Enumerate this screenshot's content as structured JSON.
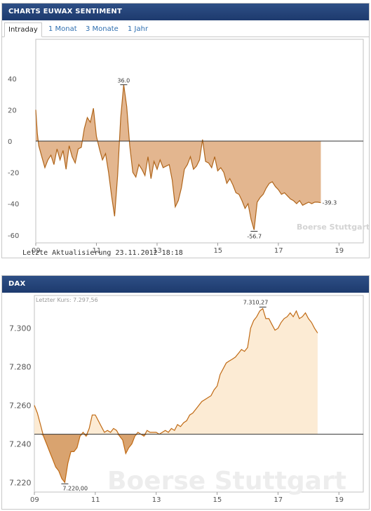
{
  "colors": {
    "header_bg": "#1f3d73",
    "sentiment_fill": "#e3b68f",
    "sentiment_line": "#b0651a",
    "dax_line": "#c06a14",
    "dax_fill_above": "#fcebd4",
    "dax_fill_below": "#d9a36f"
  },
  "sentiment": {
    "header": "CHARTS EUWAX SENTIMENT",
    "tabs": [
      "Intraday",
      "1 Monat",
      "3 Monate",
      "1 Jahr"
    ],
    "active_tab": "Intraday",
    "footer": "Letzte Aktualisierung 23.11.2012 18:18",
    "watermark": "Boerse Stuttgart"
  },
  "dax": {
    "header": "DAX",
    "last_price": "Letzter Kurs: 7.297,56",
    "watermark": "Boerse Stuttgart"
  },
  "chart_data": [
    {
      "type": "area",
      "title": "CHARTS EUWAX SENTIMENT",
      "xlim": [
        9,
        19.8
      ],
      "ylim": [
        -65,
        65
      ],
      "x_ticks": [
        "09",
        "11",
        "13",
        "15",
        "17",
        "19"
      ],
      "y_ticks": [
        "40",
        "20",
        "0",
        "-20",
        "-40",
        "-60"
      ],
      "baseline": 0,
      "annotations": {
        "max": "36.0",
        "min": "-56.7",
        "last": "-39.3"
      },
      "series": [
        {
          "x": [
            9.0,
            9.05,
            9.1,
            9.2,
            9.3,
            9.4,
            9.5,
            9.6,
            9.7,
            9.8,
            9.9,
            10.0,
            10.1,
            10.2,
            10.3,
            10.4,
            10.5,
            10.6,
            10.7,
            10.8,
            10.9,
            11.0,
            11.1,
            11.2,
            11.3,
            11.4,
            11.5,
            11.6,
            11.7,
            11.8,
            11.9,
            12.0,
            12.1,
            12.2,
            12.3,
            12.4,
            12.5,
            12.6,
            12.7,
            12.8,
            12.9,
            13.0,
            13.1,
            13.2,
            13.3,
            13.4,
            13.5,
            13.6,
            13.7,
            13.8,
            13.9,
            14.0,
            14.1,
            14.2,
            14.3,
            14.4,
            14.5,
            14.6,
            14.7,
            14.8,
            14.9,
            15.0,
            15.1,
            15.2,
            15.3,
            15.4,
            15.5,
            15.6,
            15.7,
            15.8,
            15.9,
            16.0,
            16.1,
            16.2,
            16.3,
            16.4,
            16.5,
            16.6,
            16.7,
            16.8,
            16.9,
            17.0,
            17.1,
            17.2,
            17.3,
            17.4,
            17.5,
            17.6,
            17.7,
            17.8,
            17.9,
            18.0,
            18.1,
            18.2,
            18.3,
            18.4
          ],
          "y": [
            20,
            5,
            -3,
            -10,
            -17,
            -12,
            -9,
            -15,
            -5,
            -12,
            -6,
            -18,
            -3,
            -10,
            -14,
            -5,
            -4,
            8,
            15,
            12,
            21,
            3,
            -5,
            -12,
            -8,
            -20,
            -35,
            -48,
            -22,
            15,
            36,
            22,
            -3,
            -20,
            -23,
            -15,
            -18,
            -22,
            -10,
            -24,
            -13,
            -18,
            -12,
            -17,
            -16,
            -15,
            -25,
            -42,
            -38,
            -30,
            -18,
            -15,
            -10,
            -18,
            -16,
            -12,
            1,
            -13,
            -14,
            -17,
            -10,
            -19,
            -17,
            -20,
            -27,
            -24,
            -28,
            -33,
            -34,
            -38,
            -43,
            -40,
            -50,
            -56.7,
            -39,
            -36,
            -34,
            -30,
            -27,
            -26,
            -29,
            -31,
            -34,
            -33,
            -35,
            -37,
            -38,
            -40,
            -38,
            -41,
            -40,
            -39,
            -40,
            -39,
            -39,
            -39.3
          ]
        }
      ]
    },
    {
      "type": "line",
      "title": "DAX",
      "xlim": [
        9,
        19.8
      ],
      "ylim": [
        7215,
        7317
      ],
      "x_ticks": [
        "09",
        "11",
        "13",
        "15",
        "17",
        "19"
      ],
      "y_ticks": [
        "7.300",
        "7.280",
        "7.260",
        "7.240",
        "7.220"
      ],
      "baseline": 7245,
      "annotations": {
        "max": "7.310,27",
        "min": "7.220,00",
        "last_price": "7.297,56"
      },
      "series": [
        {
          "x": [
            9.0,
            9.1,
            9.2,
            9.3,
            9.4,
            9.5,
            9.6,
            9.7,
            9.8,
            9.9,
            10.0,
            10.1,
            10.2,
            10.3,
            10.4,
            10.5,
            10.6,
            10.7,
            10.8,
            10.9,
            11.0,
            11.1,
            11.2,
            11.3,
            11.4,
            11.5,
            11.6,
            11.7,
            11.8,
            11.9,
            12.0,
            12.1,
            12.2,
            12.3,
            12.4,
            12.5,
            12.6,
            12.7,
            12.8,
            12.9,
            13.0,
            13.1,
            13.2,
            13.3,
            13.4,
            13.5,
            13.6,
            13.7,
            13.8,
            13.9,
            14.0,
            14.1,
            14.2,
            14.3,
            14.4,
            14.5,
            14.6,
            14.7,
            14.8,
            14.9,
            15.0,
            15.1,
            15.2,
            15.3,
            15.4,
            15.5,
            15.6,
            15.7,
            15.8,
            15.9,
            16.0,
            16.1,
            16.2,
            16.3,
            16.4,
            16.5,
            16.6,
            16.7,
            16.8,
            16.9,
            17.0,
            17.1,
            17.2,
            17.3,
            17.4,
            17.5,
            17.6,
            17.7,
            17.8,
            17.9,
            18.0,
            18.1,
            18.2,
            18.3
          ],
          "y": [
            7260,
            7256,
            7250,
            7244,
            7240,
            7236,
            7232,
            7228,
            7226,
            7222,
            7220,
            7230,
            7236,
            7236,
            7238,
            7244,
            7246,
            7244,
            7248,
            7255,
            7255,
            7252,
            7249,
            7246,
            7247,
            7246,
            7248,
            7247,
            7244,
            7242,
            7235,
            7238,
            7240,
            7244,
            7246,
            7245,
            7244,
            7247,
            7246,
            7246,
            7246,
            7245,
            7246,
            7247,
            7246,
            7248,
            7247,
            7250,
            7249,
            7251,
            7252,
            7255,
            7256,
            7258,
            7260,
            7262,
            7263,
            7264,
            7265,
            7268,
            7270,
            7276,
            7279,
            7282,
            7283,
            7284,
            7285,
            7287,
            7289,
            7288,
            7290,
            7300,
            7304,
            7306,
            7309,
            7310.27,
            7305,
            7305,
            7302,
            7299,
            7300,
            7303,
            7305,
            7306,
            7308,
            7306,
            7309,
            7305,
            7306,
            7308,
            7305,
            7303,
            7300,
            7297.56
          ]
        }
      ]
    }
  ]
}
